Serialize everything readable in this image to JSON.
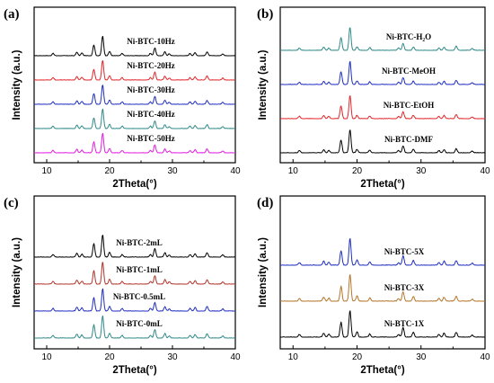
{
  "chart_data": [
    {
      "id": "a",
      "type": "line",
      "panel_label": "(a)",
      "xlabel": "2Theta(°)",
      "ylabel": "Intensity (a.u.)",
      "xlim": [
        8,
        40
      ],
      "x_ticks": [
        10,
        20,
        30,
        40
      ],
      "stacked": true,
      "peaks": [
        [
          11.0,
          0.12
        ],
        [
          14.8,
          0.18
        ],
        [
          15.6,
          0.14
        ],
        [
          17.5,
          0.55
        ],
        [
          18.9,
          1.0
        ],
        [
          20.0,
          0.22
        ],
        [
          22.0,
          0.12
        ],
        [
          26.5,
          0.12
        ],
        [
          27.2,
          0.4
        ],
        [
          28.8,
          0.2
        ],
        [
          29.5,
          0.1
        ],
        [
          32.8,
          0.12
        ],
        [
          33.6,
          0.16
        ],
        [
          35.5,
          0.2
        ],
        [
          38.0,
          0.1
        ]
      ],
      "series": [
        {
          "name": "Ni-BTC-10Hz",
          "color": "#000000"
        },
        {
          "name": "Ni-BTC-20Hz",
          "color": "#e3262b"
        },
        {
          "name": "Ni-BTC-30Hz",
          "color": "#1f2fbf"
        },
        {
          "name": "Ni-BTC-40Hz",
          "color": "#2f8a88"
        },
        {
          "name": "Ni-BTC-50Hz",
          "color": "#e01ee0"
        }
      ]
    },
    {
      "id": "b",
      "type": "line",
      "panel_label": "(b)",
      "xlabel": "2Theta(°)",
      "ylabel": "Intensity (a.u.)",
      "xlim": [
        8,
        40
      ],
      "x_ticks": [
        10,
        20,
        30,
        40
      ],
      "stacked": true,
      "peaks": [
        [
          11.0,
          0.1
        ],
        [
          14.8,
          0.14
        ],
        [
          15.6,
          0.1
        ],
        [
          17.5,
          0.55
        ],
        [
          18.9,
          1.0
        ],
        [
          20.0,
          0.15
        ],
        [
          22.0,
          0.12
        ],
        [
          26.5,
          0.1
        ],
        [
          27.2,
          0.3
        ],
        [
          28.8,
          0.15
        ],
        [
          32.8,
          0.1
        ],
        [
          33.6,
          0.14
        ],
        [
          35.5,
          0.18
        ],
        [
          38.0,
          0.08
        ]
      ],
      "series": [
        {
          "name": "Ni-BTC-H₂O",
          "color": "#2f8a88"
        },
        {
          "name": "Ni-BTC-MeOH",
          "color": "#1f2fbf"
        },
        {
          "name": "Ni-BTC-EtOH",
          "color": "#e3262b"
        },
        {
          "name": "Ni-BTC-DMF",
          "color": "#000000"
        }
      ]
    },
    {
      "id": "c",
      "type": "line",
      "panel_label": "(c)",
      "xlabel": "2Theta(°)",
      "ylabel": "Intensity (a.u.)",
      "xlim": [
        8,
        40
      ],
      "x_ticks": [
        10,
        20,
        30,
        40
      ],
      "stacked": true,
      "peaks": [
        [
          11.0,
          0.12
        ],
        [
          14.8,
          0.18
        ],
        [
          15.6,
          0.14
        ],
        [
          17.5,
          0.6
        ],
        [
          18.9,
          1.0
        ],
        [
          20.0,
          0.22
        ],
        [
          22.0,
          0.12
        ],
        [
          26.5,
          0.12
        ],
        [
          27.2,
          0.38
        ],
        [
          28.8,
          0.2
        ],
        [
          29.5,
          0.1
        ],
        [
          32.8,
          0.12
        ],
        [
          33.6,
          0.16
        ],
        [
          35.5,
          0.2
        ],
        [
          38.0,
          0.1
        ]
      ],
      "series": [
        {
          "name": "Ni-BTC-2mL",
          "color": "#000000"
        },
        {
          "name": "Ni-BTC-1mL",
          "color": "#b2352b"
        },
        {
          "name": "Ni-BTC-0.5mL",
          "color": "#1f2fbf"
        },
        {
          "name": "Ni-BTC-0mL",
          "color": "#2f8a88"
        }
      ]
    },
    {
      "id": "d",
      "type": "line",
      "panel_label": "(d)",
      "xlabel": "2Theta(°)",
      "ylabel": "Intensity (a.u.)",
      "xlim": [
        8,
        40
      ],
      "x_ticks": [
        10,
        20,
        30,
        40
      ],
      "stacked": true,
      "peaks": [
        [
          11.0,
          0.1
        ],
        [
          14.8,
          0.15
        ],
        [
          15.6,
          0.12
        ],
        [
          17.5,
          0.55
        ],
        [
          18.9,
          1.0
        ],
        [
          20.0,
          0.2
        ],
        [
          22.0,
          0.12
        ],
        [
          26.5,
          0.1
        ],
        [
          27.2,
          0.35
        ],
        [
          28.8,
          0.18
        ],
        [
          32.8,
          0.1
        ],
        [
          33.6,
          0.15
        ],
        [
          35.5,
          0.18
        ],
        [
          38.0,
          0.08
        ]
      ],
      "series": [
        {
          "name": "Ni-BTC-5X",
          "color": "#1f2fbf"
        },
        {
          "name": "Ni-BTC-3X",
          "color": "#b5762b"
        },
        {
          "name": "Ni-BTC-1X",
          "color": "#000000"
        }
      ]
    }
  ]
}
